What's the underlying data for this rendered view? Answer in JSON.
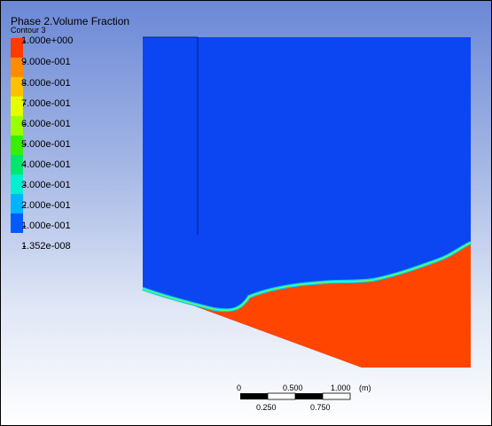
{
  "legend": {
    "title": "Phase 2.Volume Fraction",
    "subtitle": "Contour 3",
    "labels": [
      "1.000e+000",
      "9.000e-001",
      "8.000e-001",
      "7.000e-001",
      "6.000e-001",
      "5.000e-001",
      "4.000e-001",
      "3.000e-001",
      "2.000e-001",
      "1.000e-001",
      "1.352e-008"
    ],
    "colors": [
      "#ff3b00",
      "#ff8c00",
      "#ffc000",
      "#e6ff00",
      "#9cff00",
      "#36f000",
      "#00e66e",
      "#00f0d2",
      "#00b4ff",
      "#005aff"
    ]
  },
  "scale_bar": {
    "top_labels": [
      "0",
      "0.500",
      "1.000"
    ],
    "bottom_labels": [
      "0.250",
      "0.750"
    ],
    "unit": "(m)"
  },
  "colors": {
    "gas_phase": "#0b46f2",
    "liquid_phase": "#ff4500",
    "interface_outer": "#00d2ff",
    "interface_inner": "#7dff3a"
  }
}
